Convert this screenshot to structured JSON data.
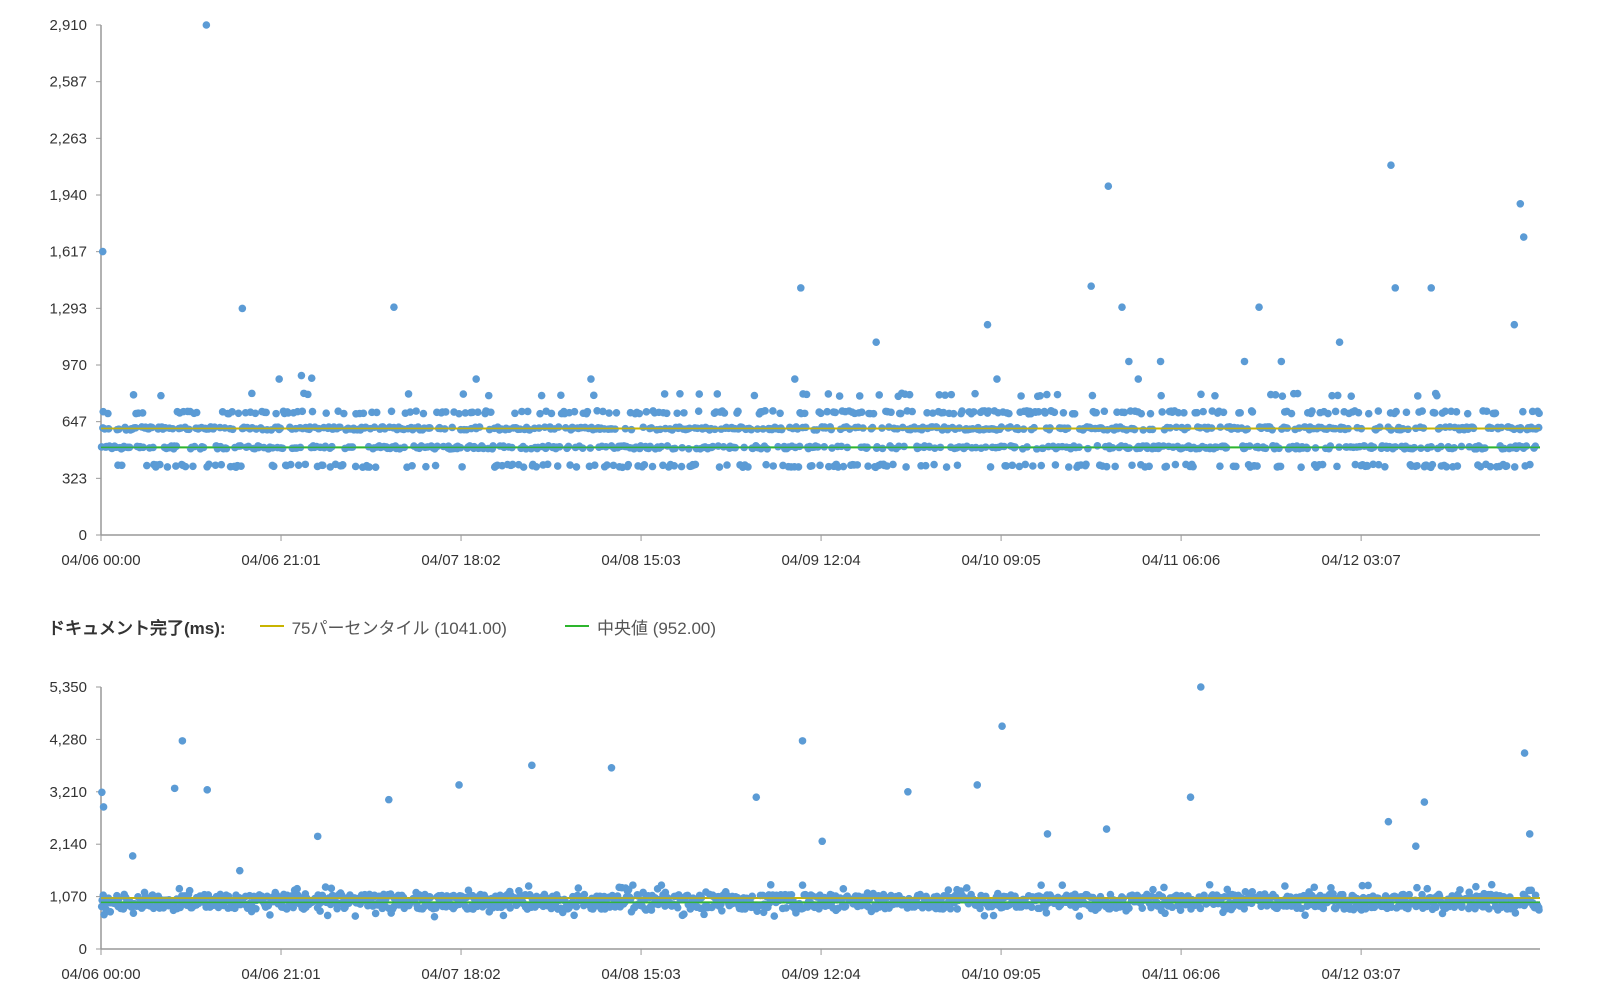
{
  "colors": {
    "points": "#5b9bd5",
    "p75": "#c8b400",
    "median": "#2db52d",
    "axis": "#999999"
  },
  "legend": {
    "title": "ドキュメント完了(ms):",
    "items": [
      {
        "label": "75パーセンタイル (1041.00)",
        "color": "#c8b400"
      },
      {
        "label": "中央値 (952.00)",
        "color": "#2db52d"
      }
    ]
  },
  "chart_data": [
    {
      "type": "scatter",
      "title": "",
      "xlabel": "",
      "ylabel": "",
      "x_tick_labels": [
        "04/06 00:00",
        "04/06 21:01",
        "04/07 18:02",
        "04/08 15:03",
        "04/09 12:04",
        "04/10 09:05",
        "04/11 06:06",
        "04/12 03:07"
      ],
      "y_tick_labels": [
        "0",
        "323",
        "647",
        "970",
        "1,293",
        "1,617",
        "1,940",
        "2,263",
        "2,587",
        "2,910"
      ],
      "ylim": [
        0,
        2910
      ],
      "x_range_hours": [
        0,
        168
      ],
      "grid": false,
      "reference_lines": [
        {
          "series": "p75",
          "value": 608
        },
        {
          "series": "median",
          "value": 500
        }
      ],
      "point_bands": [
        395,
        500,
        608,
        700,
        800
      ],
      "outliers": [
        {
          "x": 0.2,
          "y": 1617
        },
        {
          "x": 12.3,
          "y": 2910
        },
        {
          "x": 16.5,
          "y": 1293
        },
        {
          "x": 20.8,
          "y": 890
        },
        {
          "x": 23.4,
          "y": 910
        },
        {
          "x": 24.6,
          "y": 895
        },
        {
          "x": 34.2,
          "y": 1300
        },
        {
          "x": 43.8,
          "y": 890
        },
        {
          "x": 57.2,
          "y": 890
        },
        {
          "x": 81.7,
          "y": 1410
        },
        {
          "x": 81.0,
          "y": 890
        },
        {
          "x": 90.5,
          "y": 1100
        },
        {
          "x": 103.5,
          "y": 1200
        },
        {
          "x": 104.6,
          "y": 890
        },
        {
          "x": 115.6,
          "y": 1420
        },
        {
          "x": 117.6,
          "y": 1990
        },
        {
          "x": 119.2,
          "y": 1300
        },
        {
          "x": 120.0,
          "y": 990
        },
        {
          "x": 121.1,
          "y": 890
        },
        {
          "x": 123.7,
          "y": 990
        },
        {
          "x": 135.2,
          "y": 1300
        },
        {
          "x": 133.5,
          "y": 990
        },
        {
          "x": 137.8,
          "y": 990
        },
        {
          "x": 144.6,
          "y": 1100
        },
        {
          "x": 150.6,
          "y": 2110
        },
        {
          "x": 151.1,
          "y": 1410
        },
        {
          "x": 155.3,
          "y": 1410
        },
        {
          "x": 165.0,
          "y": 1200
        },
        {
          "x": 165.7,
          "y": 1890
        },
        {
          "x": 166.1,
          "y": 1700
        }
      ]
    },
    {
      "type": "scatter",
      "title": "",
      "xlabel": "",
      "ylabel": "",
      "x_tick_labels": [
        "04/06 00:00",
        "04/06 21:01",
        "04/07 18:02",
        "04/08 15:03",
        "04/09 12:04",
        "04/10 09:05",
        "04/11 06:06",
        "04/12 03:07"
      ],
      "y_tick_labels": [
        "0",
        "1,070",
        "2,140",
        "3,210",
        "4,280",
        "5,350"
      ],
      "ylim": [
        0,
        5350
      ],
      "x_range_hours": [
        0,
        168
      ],
      "grid": false,
      "reference_lines": [
        {
          "series": "p75",
          "value": 1041
        },
        {
          "series": "median",
          "value": 952
        }
      ],
      "point_bands": [
        950
      ],
      "outliers": [
        {
          "x": 0.1,
          "y": 3200
        },
        {
          "x": 0.3,
          "y": 2900
        },
        {
          "x": 3.7,
          "y": 1900
        },
        {
          "x": 8.6,
          "y": 3280
        },
        {
          "x": 9.5,
          "y": 4250
        },
        {
          "x": 12.4,
          "y": 3250
        },
        {
          "x": 16.2,
          "y": 1600
        },
        {
          "x": 25.3,
          "y": 2300
        },
        {
          "x": 33.6,
          "y": 3050
        },
        {
          "x": 41.8,
          "y": 3350
        },
        {
          "x": 50.3,
          "y": 3750
        },
        {
          "x": 59.6,
          "y": 3700
        },
        {
          "x": 76.5,
          "y": 3100
        },
        {
          "x": 81.9,
          "y": 4250
        },
        {
          "x": 84.2,
          "y": 2200
        },
        {
          "x": 94.2,
          "y": 3210
        },
        {
          "x": 102.3,
          "y": 3350
        },
        {
          "x": 105.2,
          "y": 4550
        },
        {
          "x": 110.5,
          "y": 2350
        },
        {
          "x": 117.4,
          "y": 2450
        },
        {
          "x": 128.4,
          "y": 5350
        },
        {
          "x": 127.2,
          "y": 3100
        },
        {
          "x": 150.3,
          "y": 2600
        },
        {
          "x": 153.5,
          "y": 2100
        },
        {
          "x": 154.5,
          "y": 3000
        },
        {
          "x": 166.2,
          "y": 4000
        },
        {
          "x": 166.8,
          "y": 2350
        }
      ]
    }
  ]
}
